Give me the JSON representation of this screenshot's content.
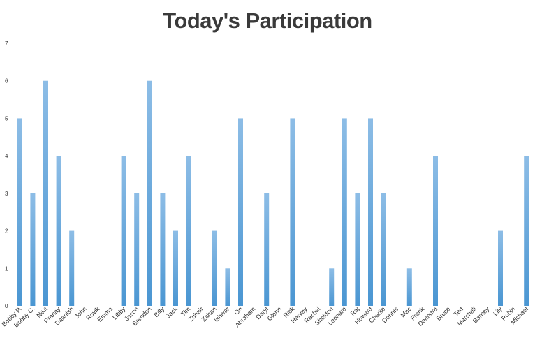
{
  "chart_data": {
    "type": "bar",
    "title": "Today's Participation",
    "xlabel": "",
    "ylabel": "",
    "ylim": [
      0,
      7
    ],
    "yticks": [
      0,
      1,
      2,
      3,
      4,
      5,
      6,
      7
    ],
    "grid": false,
    "legend": "none",
    "bar_color_light": "#8dbde6",
    "bar_color_dark": "#4a96d2",
    "categories": [
      "Bobby P.",
      "Bobby C.",
      "Nikit",
      "Pranay",
      "Daanish",
      "John",
      "Rovik",
      "Emma",
      "Libby",
      "Jason",
      "Brendon",
      "Billy",
      "Jack",
      "Tim",
      "Zuhair",
      "Zahan",
      "Ishwar",
      "Ori",
      "Abraham",
      "Daryl",
      "Glenn",
      "Rick",
      "Harvey",
      "Rachel",
      "Sheldon",
      "Leonard",
      "Raj",
      "Howard",
      "Charlie",
      "Dennis",
      "Mac",
      "Frank",
      "Deandra",
      "Bruce",
      "Ted",
      "Marshall",
      "Barney",
      "Lily",
      "Robin",
      "Michael"
    ],
    "values": [
      5,
      3,
      6,
      4,
      2,
      0,
      0,
      0,
      4,
      3,
      6,
      3,
      2,
      4,
      0,
      2,
      1,
      5,
      0,
      3,
      0,
      5,
      0,
      0,
      1,
      5,
      3,
      5,
      3,
      0,
      1,
      0,
      4,
      0,
      0,
      0,
      0,
      2,
      0,
      4
    ]
  }
}
